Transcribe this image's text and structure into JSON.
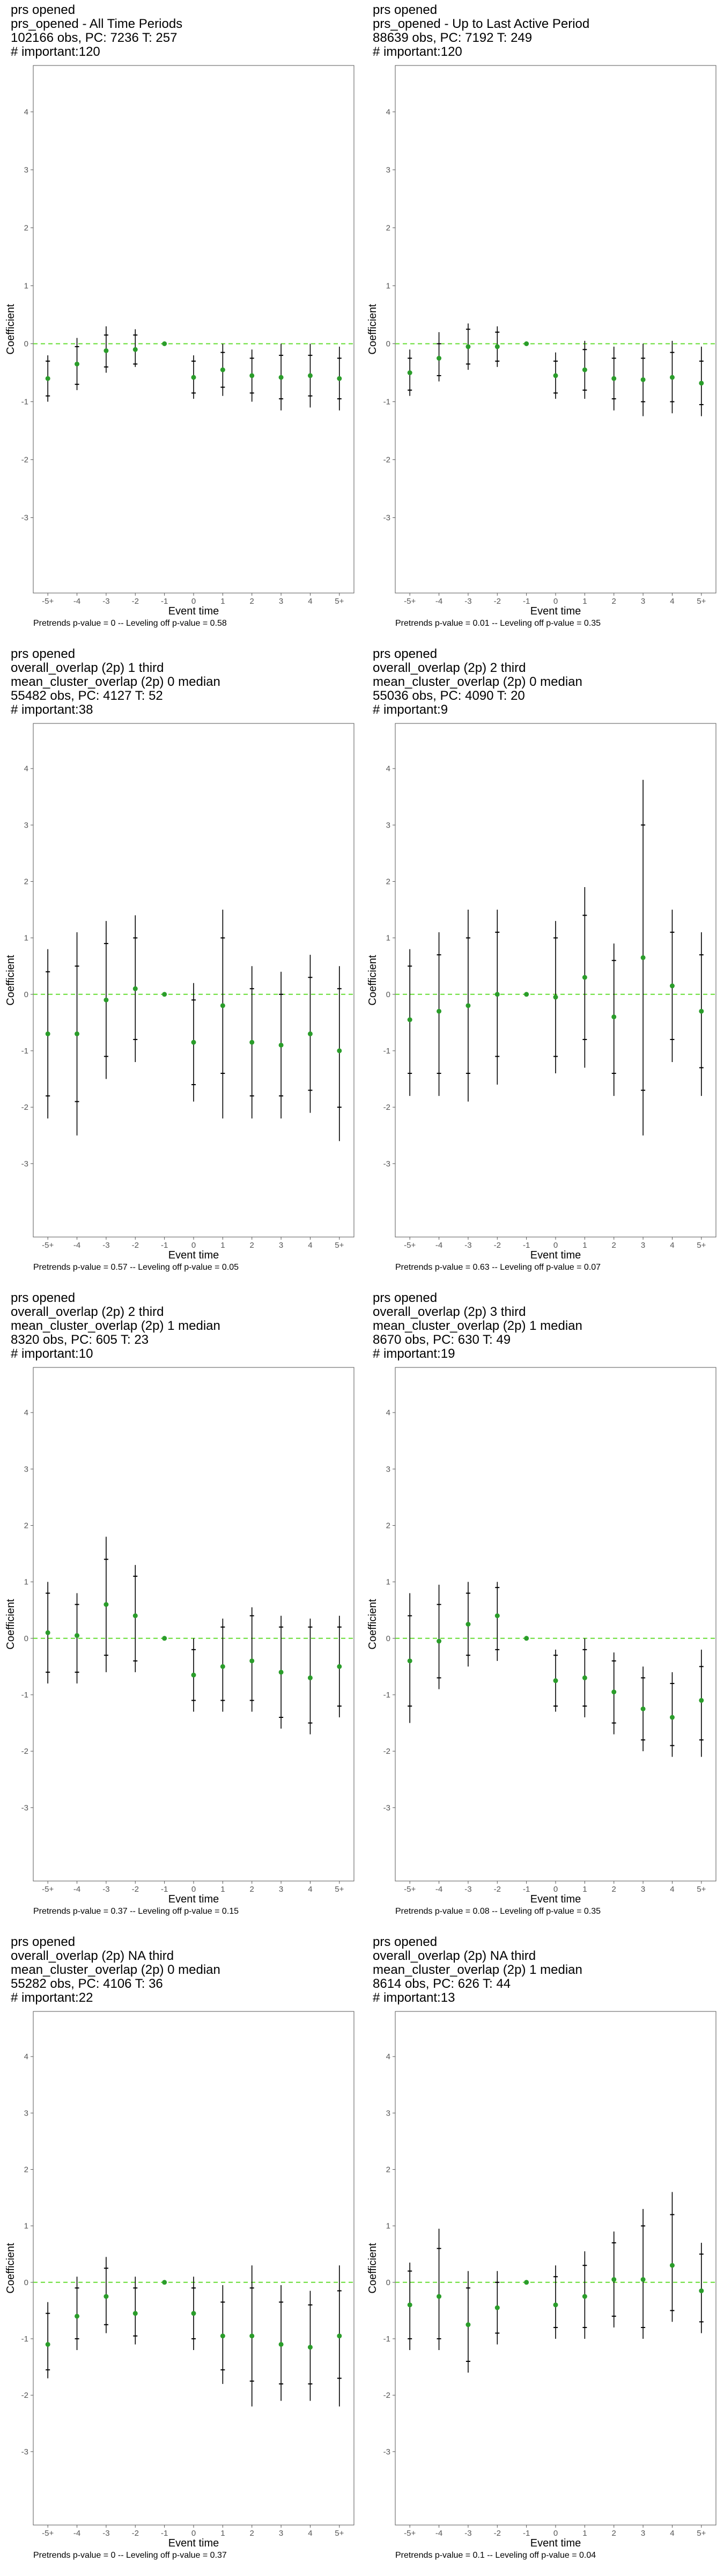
{
  "colors": {
    "point": "#2a9d2a",
    "zero_line": "#66dd33",
    "whisker": "#000000",
    "frame": "#555555"
  },
  "chart_data": [
    {
      "type": "scatter",
      "title_lines": [
        "prs opened",
        "prs_opened - All Time Periods",
        "102166 obs, PC: 7236 T: 257",
        "# important:120"
      ],
      "xlabel": "Event time",
      "ylabel": "Coefficient",
      "categories": [
        "-5+",
        "-4",
        "-3",
        "-2",
        "-1",
        "0",
        "1",
        "2",
        "3",
        "4",
        "5+"
      ],
      "yticks": [
        -3,
        -2,
        -1,
        0,
        1,
        2,
        3,
        4
      ],
      "ylim": [
        -4.3,
        4.8
      ],
      "zero_line": 0,
      "estimate": [
        -0.6,
        -0.35,
        -0.12,
        -0.1,
        0,
        -0.58,
        -0.45,
        -0.55,
        -0.58,
        -0.55,
        -0.6
      ],
      "ci_inner": [
        [
          -0.9,
          -0.3
        ],
        [
          -0.7,
          -0.05
        ],
        [
          -0.4,
          0.15
        ],
        [
          -0.35,
          0.15
        ],
        [
          0,
          0
        ],
        [
          -0.85,
          -0.3
        ],
        [
          -0.75,
          -0.15
        ],
        [
          -0.85,
          -0.25
        ],
        [
          -0.95,
          -0.2
        ],
        [
          -0.9,
          -0.2
        ],
        [
          -0.95,
          -0.25
        ]
      ],
      "ci_outer": [
        [
          -1.0,
          -0.2
        ],
        [
          -0.8,
          0.1
        ],
        [
          -0.5,
          0.3
        ],
        [
          -0.4,
          0.25
        ],
        [
          0,
          0
        ],
        [
          -0.95,
          -0.2
        ],
        [
          -0.9,
          0.0
        ],
        [
          -1.0,
          -0.1
        ],
        [
          -1.15,
          0.0
        ],
        [
          -1.1,
          0.0
        ],
        [
          -1.15,
          -0.05
        ]
      ],
      "footer": "Pretrends p-value = 0 -- Leveling off p-value = 0.58"
    },
    {
      "type": "scatter",
      "title_lines": [
        "prs opened",
        "prs_opened - Up to Last Active Period",
        "88639 obs, PC: 7192 T: 249",
        "# important:120"
      ],
      "xlabel": "Event time",
      "ylabel": "Coefficient",
      "categories": [
        "-5+",
        "-4",
        "-3",
        "-2",
        "-1",
        "0",
        "1",
        "2",
        "3",
        "4",
        "5+"
      ],
      "yticks": [
        -3,
        -2,
        -1,
        0,
        1,
        2,
        3,
        4
      ],
      "ylim": [
        -4.3,
        4.8
      ],
      "zero_line": 0,
      "estimate": [
        -0.5,
        -0.25,
        -0.05,
        -0.05,
        0,
        -0.55,
        -0.45,
        -0.6,
        -0.62,
        -0.58,
        -0.68
      ],
      "ci_inner": [
        [
          -0.8,
          -0.25
        ],
        [
          -0.55,
          0.0
        ],
        [
          -0.35,
          0.25
        ],
        [
          -0.3,
          0.2
        ],
        [
          0,
          0
        ],
        [
          -0.85,
          -0.3
        ],
        [
          -0.8,
          -0.1
        ],
        [
          -0.95,
          -0.25
        ],
        [
          -1.0,
          -0.25
        ],
        [
          -1.0,
          -0.15
        ],
        [
          -1.05,
          -0.3
        ]
      ],
      "ci_outer": [
        [
          -0.9,
          -0.1
        ],
        [
          -0.65,
          0.2
        ],
        [
          -0.45,
          0.35
        ],
        [
          -0.4,
          0.3
        ],
        [
          0,
          0
        ],
        [
          -0.95,
          -0.15
        ],
        [
          -0.95,
          0.05
        ],
        [
          -1.15,
          -0.05
        ],
        [
          -1.25,
          0.0
        ],
        [
          -1.2,
          0.05
        ],
        [
          -1.25,
          -0.05
        ]
      ],
      "footer": "Pretrends p-value = 0.01 -- Leveling off p-value = 0.35"
    },
    {
      "type": "scatter",
      "title_lines": [
        "prs opened",
        "overall_overlap (2p) 1 third",
        "mean_cluster_overlap (2p) 0 median",
        "55482 obs, PC: 4127 T: 52",
        "# important:38"
      ],
      "xlabel": "Event time",
      "ylabel": "Coefficient",
      "categories": [
        "-5+",
        "-4",
        "-3",
        "-2",
        "-1",
        "0",
        "1",
        "2",
        "3",
        "4",
        "5+"
      ],
      "yticks": [
        -3,
        -2,
        -1,
        0,
        1,
        2,
        3,
        4
      ],
      "ylim": [
        -4.3,
        4.8
      ],
      "zero_line": 0,
      "estimate": [
        -0.7,
        -0.7,
        -0.1,
        0.1,
        0,
        -0.85,
        -0.2,
        -0.85,
        -0.9,
        -0.7,
        -1.0
      ],
      "ci_inner": [
        [
          -1.8,
          0.4
        ],
        [
          -1.9,
          0.5
        ],
        [
          -1.1,
          0.9
        ],
        [
          -0.8,
          1.0
        ],
        [
          0,
          0
        ],
        [
          -1.6,
          -0.1
        ],
        [
          -1.4,
          1.0
        ],
        [
          -1.8,
          0.1
        ],
        [
          -1.8,
          0.0
        ],
        [
          -1.7,
          0.3
        ],
        [
          -2.0,
          0.1
        ]
      ],
      "ci_outer": [
        [
          -2.2,
          0.8
        ],
        [
          -2.5,
          1.1
        ],
        [
          -1.5,
          1.3
        ],
        [
          -1.2,
          1.4
        ],
        [
          0,
          0
        ],
        [
          -1.9,
          0.2
        ],
        [
          -2.2,
          1.5
        ],
        [
          -2.2,
          0.5
        ],
        [
          -2.2,
          0.4
        ],
        [
          -2.1,
          0.7
        ],
        [
          -2.6,
          0.5
        ]
      ],
      "footer": "Pretrends p-value = 0.57 -- Leveling off p-value = 0.05"
    },
    {
      "type": "scatter",
      "title_lines": [
        "prs opened",
        "overall_overlap (2p) 2 third",
        "mean_cluster_overlap (2p) 0 median",
        "55036 obs, PC: 4090 T: 20",
        "# important:9"
      ],
      "xlabel": "Event time",
      "ylabel": "Coefficient",
      "categories": [
        "-5+",
        "-4",
        "-3",
        "-2",
        "-1",
        "0",
        "1",
        "2",
        "3",
        "4",
        "5+"
      ],
      "yticks": [
        -3,
        -2,
        -1,
        0,
        1,
        2,
        3,
        4
      ],
      "ylim": [
        -4.3,
        4.8
      ],
      "zero_line": 0,
      "estimate": [
        -0.45,
        -0.3,
        -0.2,
        0.0,
        0,
        -0.05,
        0.3,
        -0.4,
        0.65,
        0.15,
        -0.3
      ],
      "ci_inner": [
        [
          -1.4,
          0.5
        ],
        [
          -1.4,
          0.7
        ],
        [
          -1.4,
          1.0
        ],
        [
          -1.1,
          1.1
        ],
        [
          0,
          0
        ],
        [
          -1.1,
          1.0
        ],
        [
          -0.8,
          1.4
        ],
        [
          -1.4,
          0.6
        ],
        [
          -1.7,
          3.0
        ],
        [
          -0.8,
          1.1
        ],
        [
          -1.3,
          0.7
        ]
      ],
      "ci_outer": [
        [
          -1.8,
          0.8
        ],
        [
          -1.8,
          1.1
        ],
        [
          -1.9,
          1.5
        ],
        [
          -1.6,
          1.5
        ],
        [
          0,
          0
        ],
        [
          -1.4,
          1.3
        ],
        [
          -1.3,
          1.9
        ],
        [
          -1.8,
          0.9
        ],
        [
          -2.5,
          3.8
        ],
        [
          -1.2,
          1.5
        ],
        [
          -1.8,
          1.1
        ]
      ],
      "footer": "Pretrends p-value = 0.63 -- Leveling off p-value = 0.07"
    },
    {
      "type": "scatter",
      "title_lines": [
        "prs opened",
        "overall_overlap (2p) 2 third",
        "mean_cluster_overlap (2p) 1 median",
        "8320 obs, PC: 605 T: 23",
        "# important:10"
      ],
      "xlabel": "Event time",
      "ylabel": "Coefficient",
      "categories": [
        "-5+",
        "-4",
        "-3",
        "-2",
        "-1",
        "0",
        "1",
        "2",
        "3",
        "4",
        "5+"
      ],
      "yticks": [
        -3,
        -2,
        -1,
        0,
        1,
        2,
        3,
        4
      ],
      "ylim": [
        -4.3,
        4.8
      ],
      "zero_line": 0,
      "estimate": [
        0.1,
        0.05,
        0.6,
        0.4,
        0,
        -0.65,
        -0.5,
        -0.4,
        -0.6,
        -0.7,
        -0.5
      ],
      "ci_inner": [
        [
          -0.6,
          0.8
        ],
        [
          -0.6,
          0.6
        ],
        [
          -0.3,
          1.4
        ],
        [
          -0.4,
          1.1
        ],
        [
          0,
          0
        ],
        [
          -1.1,
          -0.2
        ],
        [
          -1.1,
          0.2
        ],
        [
          -1.1,
          0.4
        ],
        [
          -1.4,
          0.2
        ],
        [
          -1.5,
          0.2
        ],
        [
          -1.2,
          0.2
        ]
      ],
      "ci_outer": [
        [
          -0.8,
          1.0
        ],
        [
          -0.8,
          0.8
        ],
        [
          -0.6,
          1.8
        ],
        [
          -0.6,
          1.3
        ],
        [
          0,
          0
        ],
        [
          -1.3,
          0.0
        ],
        [
          -1.3,
          0.35
        ],
        [
          -1.3,
          0.55
        ],
        [
          -1.6,
          0.4
        ],
        [
          -1.7,
          0.35
        ],
        [
          -1.4,
          0.4
        ]
      ],
      "footer": "Pretrends p-value = 0.37 -- Leveling off p-value = 0.15"
    },
    {
      "type": "scatter",
      "title_lines": [
        "prs opened",
        "overall_overlap (2p) 3 third",
        "mean_cluster_overlap (2p) 1 median",
        "8670 obs, PC: 630 T: 49",
        "# important:19"
      ],
      "xlabel": "Event time",
      "ylabel": "Coefficient",
      "categories": [
        "-5+",
        "-4",
        "-3",
        "-2",
        "-1",
        "0",
        "1",
        "2",
        "3",
        "4",
        "5+"
      ],
      "yticks": [
        -3,
        -2,
        -1,
        0,
        1,
        2,
        3,
        4
      ],
      "ylim": [
        -4.3,
        4.8
      ],
      "zero_line": 0,
      "estimate": [
        -0.4,
        -0.05,
        0.25,
        0.4,
        0,
        -0.75,
        -0.7,
        -0.95,
        -1.25,
        -1.4,
        -1.1
      ],
      "ci_inner": [
        [
          -1.2,
          0.4
        ],
        [
          -0.7,
          0.6
        ],
        [
          -0.3,
          0.8
        ],
        [
          -0.2,
          0.9
        ],
        [
          0,
          0
        ],
        [
          -1.2,
          -0.3
        ],
        [
          -1.2,
          -0.2
        ],
        [
          -1.5,
          -0.4
        ],
        [
          -1.8,
          -0.7
        ],
        [
          -1.9,
          -0.8
        ],
        [
          -1.8,
          -0.5
        ]
      ],
      "ci_outer": [
        [
          -1.5,
          0.8
        ],
        [
          -0.9,
          0.95
        ],
        [
          -0.5,
          1.0
        ],
        [
          -0.4,
          1.0
        ],
        [
          0,
          0
        ],
        [
          -1.3,
          -0.2
        ],
        [
          -1.4,
          0.0
        ],
        [
          -1.7,
          -0.25
        ],
        [
          -2.0,
          -0.5
        ],
        [
          -2.1,
          -0.6
        ],
        [
          -2.1,
          -0.2
        ]
      ],
      "footer": "Pretrends p-value = 0.08 -- Leveling off p-value = 0.35"
    },
    {
      "type": "scatter",
      "title_lines": [
        "prs opened",
        "overall_overlap (2p) NA third",
        "mean_cluster_overlap (2p) 0 median",
        "55282 obs, PC: 4106 T: 36",
        "# important:22"
      ],
      "xlabel": "Event time",
      "ylabel": "Coefficient",
      "categories": [
        "-5+",
        "-4",
        "-3",
        "-2",
        "-1",
        "0",
        "1",
        "2",
        "3",
        "4",
        "5+"
      ],
      "yticks": [
        -3,
        -2,
        -1,
        0,
        1,
        2,
        3,
        4
      ],
      "ylim": [
        -4.3,
        4.8
      ],
      "zero_line": 0,
      "estimate": [
        -1.1,
        -0.6,
        -0.25,
        -0.55,
        0,
        -0.55,
        -0.95,
        -0.95,
        -1.1,
        -1.15,
        -0.95
      ],
      "ci_inner": [
        [
          -1.55,
          -0.55
        ],
        [
          -1.0,
          -0.1
        ],
        [
          -0.75,
          0.25
        ],
        [
          -0.95,
          -0.1
        ],
        [
          0,
          0
        ],
        [
          -1.0,
          -0.1
        ],
        [
          -1.55,
          -0.35
        ],
        [
          -1.75,
          -0.1
        ],
        [
          -1.8,
          -0.35
        ],
        [
          -1.8,
          -0.4
        ],
        [
          -1.7,
          -0.15
        ]
      ],
      "ci_outer": [
        [
          -1.7,
          -0.35
        ],
        [
          -1.2,
          0.1
        ],
        [
          -0.9,
          0.45
        ],
        [
          -1.1,
          0.1
        ],
        [
          0,
          0
        ],
        [
          -1.2,
          0.1
        ],
        [
          -1.8,
          -0.05
        ],
        [
          -2.2,
          0.3
        ],
        [
          -2.1,
          -0.05
        ],
        [
          -2.1,
          -0.15
        ],
        [
          -2.2,
          0.3
        ]
      ],
      "footer": "Pretrends p-value = 0 -- Leveling off p-value = 0.37"
    },
    {
      "type": "scatter",
      "title_lines": [
        "prs opened",
        "overall_overlap (2p) NA third",
        "mean_cluster_overlap (2p) 1 median",
        "8614 obs, PC: 626 T: 44",
        "# important:13"
      ],
      "xlabel": "Event time",
      "ylabel": "Coefficient",
      "categories": [
        "-5+",
        "-4",
        "-3",
        "-2",
        "-1",
        "0",
        "1",
        "2",
        "3",
        "4",
        "5+"
      ],
      "yticks": [
        -3,
        -2,
        -1,
        0,
        1,
        2,
        3,
        4
      ],
      "ylim": [
        -4.3,
        4.8
      ],
      "zero_line": 0,
      "estimate": [
        -0.4,
        -0.25,
        -0.75,
        -0.45,
        0,
        -0.4,
        -0.25,
        0.05,
        0.05,
        0.3,
        -0.15
      ],
      "ci_inner": [
        [
          -1.0,
          0.2
        ],
        [
          -1.0,
          0.6
        ],
        [
          -1.4,
          -0.1
        ],
        [
          -0.9,
          0.0
        ],
        [
          0,
          0
        ],
        [
          -0.8,
          0.1
        ],
        [
          -0.8,
          0.3
        ],
        [
          -0.6,
          0.7
        ],
        [
          -0.8,
          1.0
        ],
        [
          -0.5,
          1.2
        ],
        [
          -0.7,
          0.5
        ]
      ],
      "ci_outer": [
        [
          -1.2,
          0.35
        ],
        [
          -1.2,
          0.95
        ],
        [
          -1.6,
          0.2
        ],
        [
          -1.1,
          0.2
        ],
        [
          0,
          0
        ],
        [
          -1.0,
          0.3
        ],
        [
          -1.0,
          0.55
        ],
        [
          -0.8,
          0.9
        ],
        [
          -1.0,
          1.3
        ],
        [
          -0.7,
          1.6
        ],
        [
          -0.9,
          0.7
        ]
      ],
      "footer": "Pretrends p-value = 0.1 -- Leveling off p-value = 0.04"
    }
  ]
}
